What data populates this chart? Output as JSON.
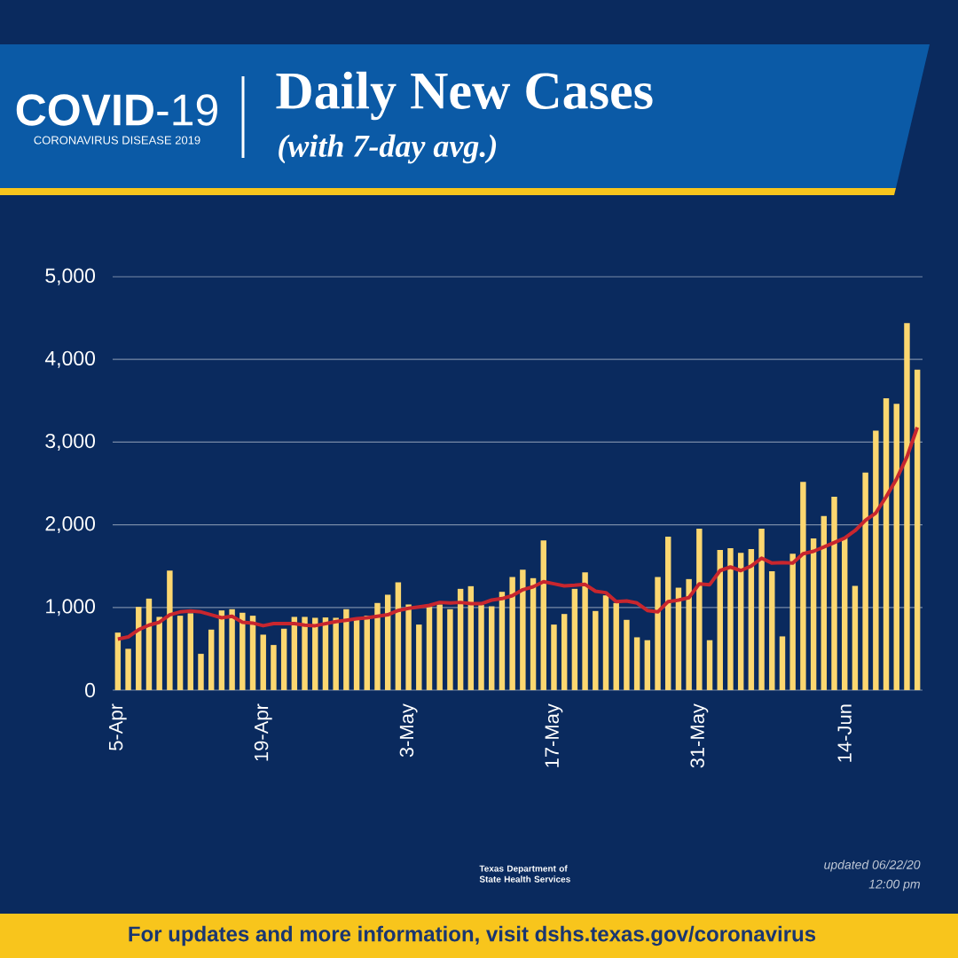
{
  "chart_data": {
    "type": "bar",
    "title": "Daily New Cases",
    "subtitle": "(with 7-day avg.)",
    "annotations": [
      "**COVID**-19",
      "CORONAVIRUS DISEASE 2019",
      "Texas Department of State Health Services",
      "updated 06/22/20",
      "12:00 pm",
      "For updates and more information, visit dshs.texas.gov/coronavirus"
    ],
    "categories": [
      "5-Apr",
      null,
      null,
      null,
      null,
      null,
      null,
      null,
      null,
      null,
      null,
      null,
      null,
      null,
      "19-Apr",
      null,
      null,
      null,
      null,
      null,
      null,
      null,
      null,
      null,
      null,
      null,
      null,
      null,
      "3-May",
      null,
      null,
      null,
      null,
      null,
      null,
      null,
      null,
      null,
      null,
      null,
      null,
      null,
      "17-May",
      null,
      null,
      null,
      null,
      null,
      null,
      null,
      null,
      null,
      null,
      null,
      null,
      null,
      "31-May",
      null,
      null,
      null,
      null,
      null,
      null,
      null,
      null,
      null,
      null,
      null,
      null,
      null,
      "14-Jun",
      null,
      null,
      null,
      null,
      null,
      null,
      null
    ],
    "series": [
      {
        "color": "#fcd770",
        "values": [
          696,
          500,
          1007,
          1107,
          886,
          1446,
          900,
          929,
          439,
          732,
          964,
          979,
          936,
          900,
          671,
          546,
          743,
          886,
          886,
          875,
          879,
          875,
          979,
          850,
          900,
          1054,
          1154,
          1304,
          1036,
          793,
          1007,
          1036,
          979,
          1225,
          1257,
          1029,
          1014,
          1189,
          1368,
          1457,
          1354,
          1811,
          793,
          921,
          1225,
          1425,
          957,
          1146,
          1054,
          850,
          639,
          604,
          1368,
          1857,
          1239,
          1343,
          1954,
          604,
          1696,
          1718,
          1661,
          1707,
          1954,
          1439,
          650,
          1650,
          2518,
          1836,
          2107,
          2339,
          1840,
          1261,
          2632,
          3139,
          3529,
          3464,
          4439,
          3875
        ]
      },
      {
        "type": "line",
        "color": "#c8262e",
        "values": [
          618,
          643,
          732,
          786,
          821,
          911,
          946,
          957,
          946,
          911,
          875,
          893,
          821,
          811,
          779,
          804,
          804,
          804,
          786,
          779,
          804,
          829,
          846,
          864,
          875,
          893,
          911,
          964,
          989,
          1007,
          1025,
          1061,
          1054,
          1061,
          1046,
          1046,
          1089,
          1107,
          1143,
          1214,
          1250,
          1311,
          1286,
          1261,
          1268,
          1279,
          1196,
          1179,
          1071,
          1079,
          1054,
          964,
          946,
          1071,
          1089,
          1118,
          1286,
          1275,
          1446,
          1489,
          1446,
          1500,
          1596,
          1536,
          1543,
          1536,
          1650,
          1679,
          1732,
          1786,
          1839,
          1929,
          2054,
          2143,
          2339,
          2554,
          2821,
          3179
        ]
      }
    ],
    "ylim": [
      0,
      5000
    ],
    "yticks": [
      0,
      {
        "value": 1000,
        "label": "1,000"
      },
      {
        "value": 2000,
        "label": "2,000"
      },
      {
        "value": 3000,
        "label": "3,000"
      },
      {
        "value": 4000,
        "label": "4,000"
      },
      {
        "value": 5000,
        "label": "5,000"
      }
    ],
    "grid": "y"
  }
}
